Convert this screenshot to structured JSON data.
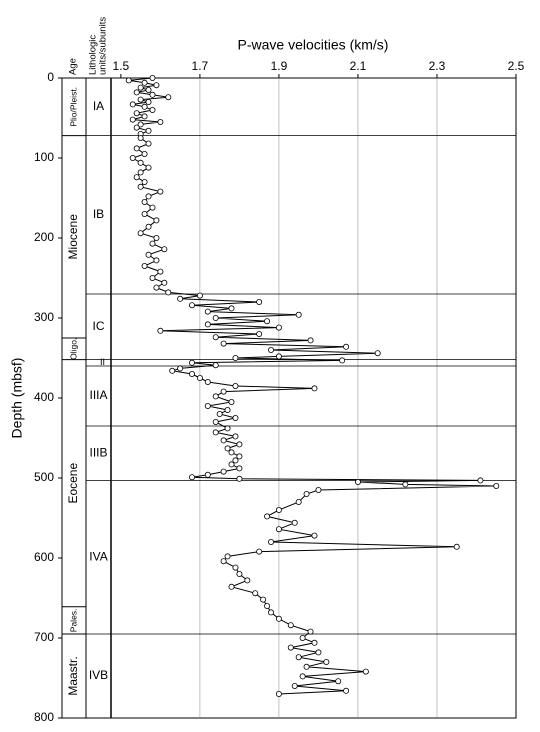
{
  "chart_data": {
    "type": "line",
    "title": "P-wave velocities (km/s)",
    "y_label": "Depth (mbsf)",
    "age_header": "Age",
    "unit_header": [
      "Lithologic",
      "units/subunits"
    ],
    "xlim": [
      1.475,
      2.5
    ],
    "xticks": [
      1.5,
      1.7,
      1.9,
      2.1,
      2.3,
      2.5
    ],
    "ylim": [
      0,
      800
    ],
    "yticks": [
      0,
      100,
      200,
      300,
      400,
      500,
      600,
      700,
      800
    ],
    "ages": [
      {
        "label": "Plio/Pleist.",
        "top": 0,
        "bottom": 72
      },
      {
        "label": "Miocene",
        "top": 72,
        "bottom": 325
      },
      {
        "label": "Oligo.",
        "top": 325,
        "bottom": 352
      },
      {
        "label": "Eocene",
        "top": 352,
        "bottom": 661
      },
      {
        "label": "Pales.",
        "top": 661,
        "bottom": 695
      },
      {
        "label": "Maastr.",
        "top": 695,
        "bottom": 800
      }
    ],
    "units": [
      {
        "label": "IA",
        "top": 0,
        "bottom": 72
      },
      {
        "label": "IB",
        "top": 72,
        "bottom": 270
      },
      {
        "label": "IC",
        "top": 270,
        "bottom": 352
      },
      {
        "label": "II",
        "top": 352,
        "bottom": 360
      },
      {
        "label": "IIIA",
        "top": 360,
        "bottom": 435
      },
      {
        "label": "IIIB",
        "top": 435,
        "bottom": 503
      },
      {
        "label": "IVA",
        "top": 503,
        "bottom": 695
      },
      {
        "label": "IVB",
        "top": 695,
        "bottom": 800
      }
    ],
    "depth": [
      0,
      3,
      6,
      9,
      12,
      15,
      18,
      21,
      24,
      27,
      30,
      33,
      36,
      40,
      44,
      48,
      52,
      55,
      58,
      62,
      66,
      70,
      75,
      82,
      88,
      95,
      100,
      106,
      112,
      118,
      124,
      130,
      136,
      142,
      148,
      155,
      162,
      170,
      178,
      186,
      194,
      200,
      207,
      214,
      221,
      228,
      235,
      242,
      250,
      256,
      262,
      268,
      272,
      276,
      280,
      284,
      288,
      292,
      296,
      300,
      304,
      308,
      312,
      316,
      320,
      324,
      328,
      332,
      336,
      340,
      344,
      348,
      350,
      353,
      356,
      359,
      363,
      366,
      370,
      375,
      380,
      385,
      388,
      392,
      398,
      405,
      410,
      415,
      420,
      425,
      430,
      438,
      443,
      448,
      453,
      458,
      463,
      468,
      473,
      478,
      483,
      488,
      492,
      496,
      499,
      501,
      503,
      505,
      508,
      510,
      515,
      520,
      530,
      540,
      548,
      556,
      564,
      572,
      580,
      586,
      592,
      598,
      604,
      612,
      620,
      628,
      636,
      644,
      652,
      660,
      668,
      676,
      684,
      692,
      700,
      706,
      712,
      718,
      724,
      730,
      736,
      742,
      748,
      754,
      760,
      766,
      770
    ],
    "values": [
      1.58,
      1.52,
      1.56,
      1.59,
      1.55,
      1.57,
      1.54,
      1.58,
      1.62,
      1.55,
      1.57,
      1.53,
      1.56,
      1.58,
      1.54,
      1.56,
      1.53,
      1.6,
      1.55,
      1.54,
      1.57,
      1.55,
      1.55,
      1.57,
      1.54,
      1.56,
      1.53,
      1.55,
      1.57,
      1.55,
      1.54,
      1.56,
      1.55,
      1.6,
      1.57,
      1.56,
      1.58,
      1.56,
      1.59,
      1.57,
      1.55,
      1.59,
      1.58,
      1.61,
      1.57,
      1.59,
      1.56,
      1.6,
      1.58,
      1.61,
      1.59,
      1.62,
      1.7,
      1.65,
      1.85,
      1.68,
      1.78,
      1.72,
      1.95,
      1.74,
      1.87,
      1.72,
      1.9,
      1.6,
      1.85,
      1.74,
      1.98,
      1.76,
      2.07,
      1.88,
      2.15,
      1.9,
      1.79,
      2.06,
      1.68,
      1.74,
      1.65,
      1.63,
      1.68,
      1.7,
      1.72,
      1.79,
      1.99,
      1.76,
      1.74,
      1.78,
      1.72,
      1.77,
      1.75,
      1.79,
      1.74,
      1.77,
      1.74,
      1.79,
      1.76,
      1.8,
      1.77,
      1.78,
      1.8,
      1.79,
      1.78,
      1.8,
      1.76,
      1.72,
      1.68,
      1.8,
      2.41,
      2.1,
      2.22,
      2.45,
      2.0,
      1.97,
      1.95,
      1.9,
      1.87,
      1.94,
      1.9,
      1.99,
      1.88,
      2.35,
      1.85,
      1.77,
      1.76,
      1.79,
      1.8,
      1.82,
      1.78,
      1.84,
      1.86,
      1.87,
      1.88,
      1.9,
      1.93,
      1.98,
      1.96,
      1.99,
      1.93,
      2.0,
      1.95,
      2.02,
      1.97,
      2.12,
      1.96,
      2.05,
      1.94,
      2.07,
      1.9
    ]
  }
}
